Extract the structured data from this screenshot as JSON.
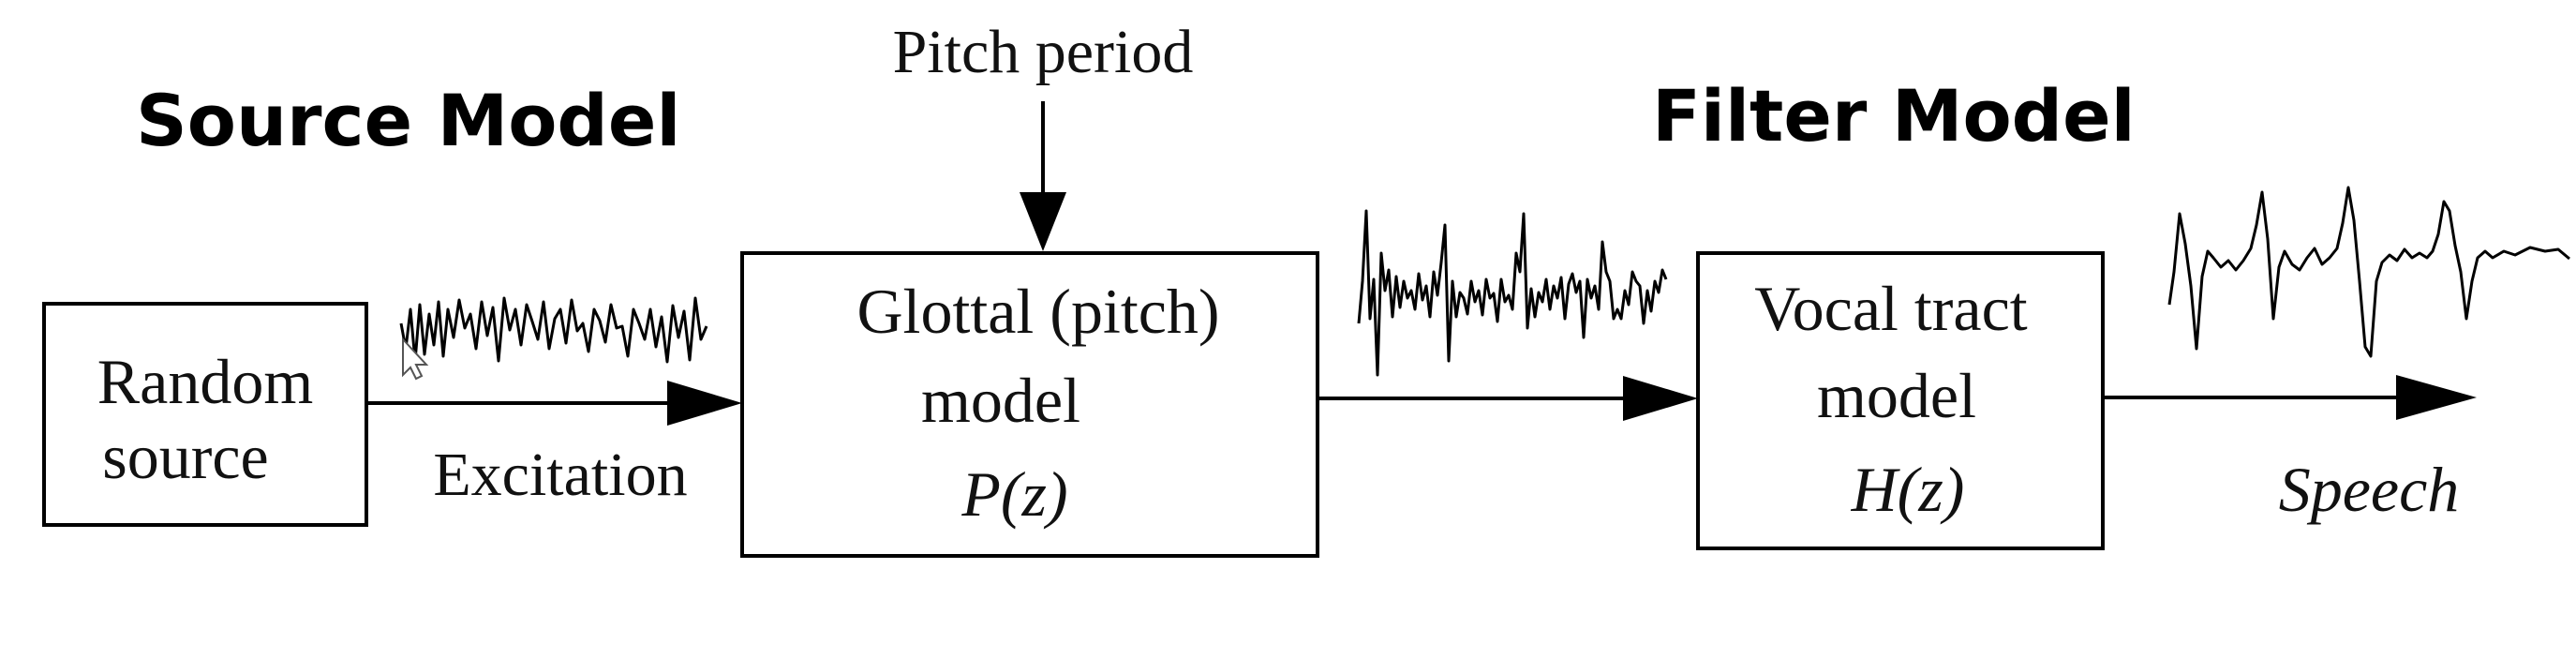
{
  "headings": {
    "source_model": "Source Model",
    "filter_model": "Filter Model"
  },
  "pitch_input_label": "Pitch period",
  "blocks": {
    "random_source": {
      "line1": "Random",
      "line2": "source"
    },
    "glottal_model": {
      "line1": "Glottal (pitch)",
      "line2": "model",
      "transfer": "P(z)"
    },
    "vocal_tract_model": {
      "line1": "Vocal tract",
      "line2": "model",
      "transfer": "H(z)"
    }
  },
  "signal_labels": {
    "excitation": "Excitation",
    "speech": "Speech"
  }
}
